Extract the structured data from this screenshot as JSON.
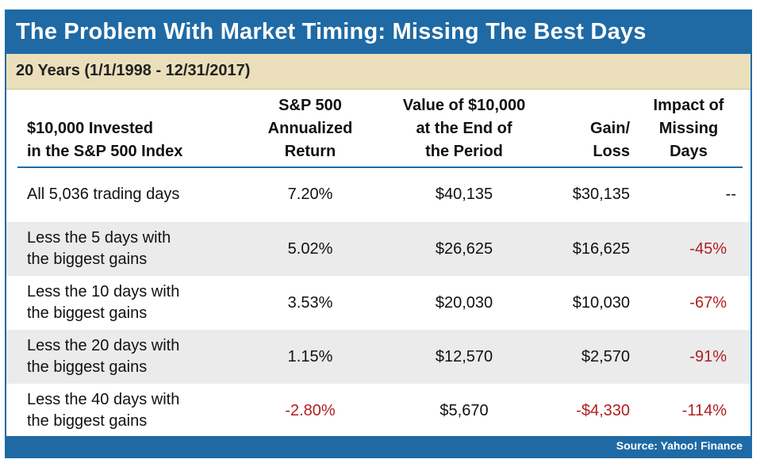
{
  "title": "The Problem With Market Timing: Missing The Best Days",
  "subtitle": "20 Years (1/1/1998 - 12/31/2017)",
  "columns": [
    "$10,000 Invested\nin the S&P 500 Index",
    "S&P 500\nAnnualized\nReturn",
    "Value of $10,000\nat the End of\nthe Period",
    "Gain/\nLoss",
    "Impact of\nMissing\nDays"
  ],
  "rows": [
    {
      "label_1": "All 5,036 trading days",
      "label_2": "",
      "return": "7.20%",
      "value": "$40,135",
      "gain": "$30,135",
      "impact": "--"
    },
    {
      "label_1": "Less the 5 days with",
      "label_2": "the biggest gains",
      "return": "5.02%",
      "value": "$26,625",
      "gain": "$16,625",
      "impact": "-45%"
    },
    {
      "label_1": "Less the 10 days with",
      "label_2": "the biggest gains",
      "return": "3.53%",
      "value": "$20,030",
      "gain": "$10,030",
      "impact": "-67%"
    },
    {
      "label_1": "Less the 20 days with",
      "label_2": "the biggest gains",
      "return": "1.15%",
      "value": "$12,570",
      "gain": "$2,570",
      "impact": "-91%"
    },
    {
      "label_1": "Less the 40 days with",
      "label_2": "the biggest gains",
      "return": "-2.80%",
      "value": "$5,670",
      "gain": "-$4,330",
      "impact": "-114%"
    }
  ],
  "source": "Source: Yahoo! Finance",
  "colors": {
    "header_blue": "#1f6aa5",
    "subtitle_tan": "#eadfba",
    "negative_red": "#b01e1e",
    "row_shade": "#ebebeb"
  }
}
